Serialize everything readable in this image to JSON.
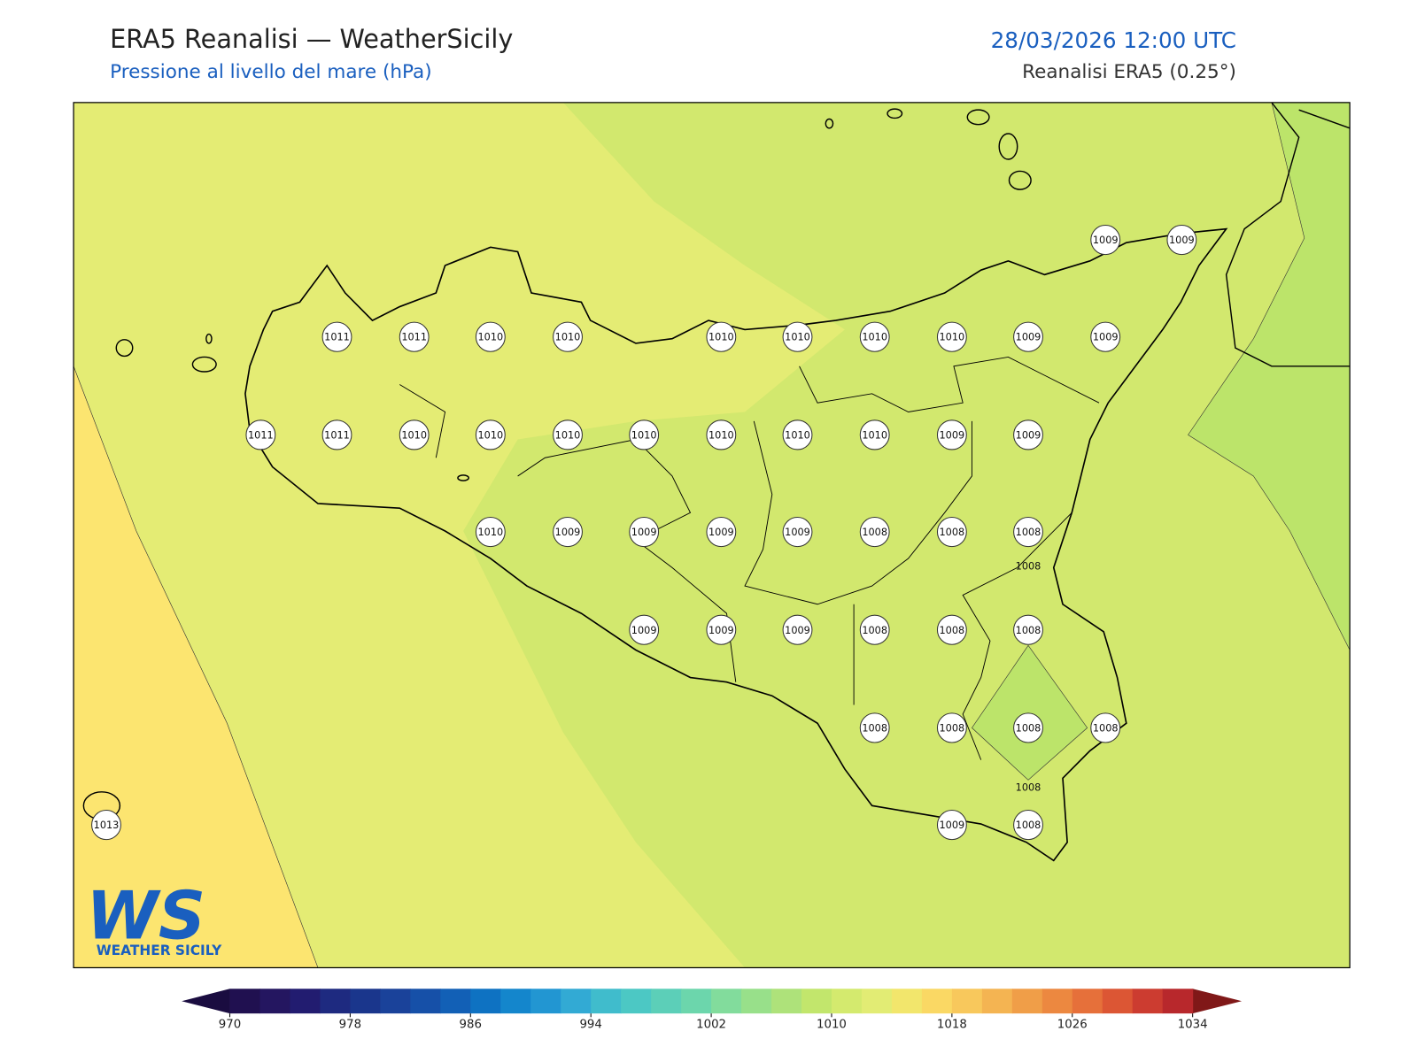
{
  "header": {
    "title": "ERA5 Reanalisi — WeatherSicily",
    "subtitle": "Pressione al livello del mare (hPa)",
    "datetime": "28/03/2026 12:00 UTC",
    "source": "Reanalisi ERA5 (0.25°)"
  },
  "stations": [
    1009,
    1009,
    1011,
    1011,
    1010,
    1010,
    1010,
    1010,
    1010,
    1010,
    1009,
    1009,
    1011,
    1011,
    1010,
    1010,
    1010,
    1010,
    1010,
    1010,
    1010,
    1009,
    1009,
    1010,
    1009,
    1009,
    1009,
    1009,
    1008,
    1008,
    1008,
    1009,
    1009,
    1009,
    1008,
    1008,
    1008,
    1008,
    1008,
    1008,
    1008,
    1013,
    1009,
    1008
  ],
  "contour_labels": [
    1008,
    1008
  ],
  "colorbar": {
    "ticks": [
      970,
      978,
      986,
      994,
      1002,
      1010,
      1018,
      1026,
      1034
    ],
    "colors": [
      "#201050",
      "#241660",
      "#221c70",
      "#1e2a80",
      "#1a368c",
      "#1a429a",
      "#1650a8",
      "#1260b6",
      "#0e72c2",
      "#1486cc",
      "#2296d2",
      "#32aad4",
      "#40bccc",
      "#4cc8c4",
      "#5ccfb8",
      "#6cd6ac",
      "#82dc9c",
      "#98e08a",
      "#aee27a",
      "#c2e66c",
      "#d4ea6e",
      "#e2ec74",
      "#f2e66c",
      "#fad864",
      "#f8c85c",
      "#f4b452",
      "#f09e48",
      "#ec8840",
      "#e6703a",
      "#dc5634",
      "#cc3c30",
      "#b8282c"
    ],
    "under_color": "#1a0c40",
    "over_color": "#801818"
  },
  "logo": {
    "mark": "WS",
    "name": "WEATHER SICILY"
  }
}
